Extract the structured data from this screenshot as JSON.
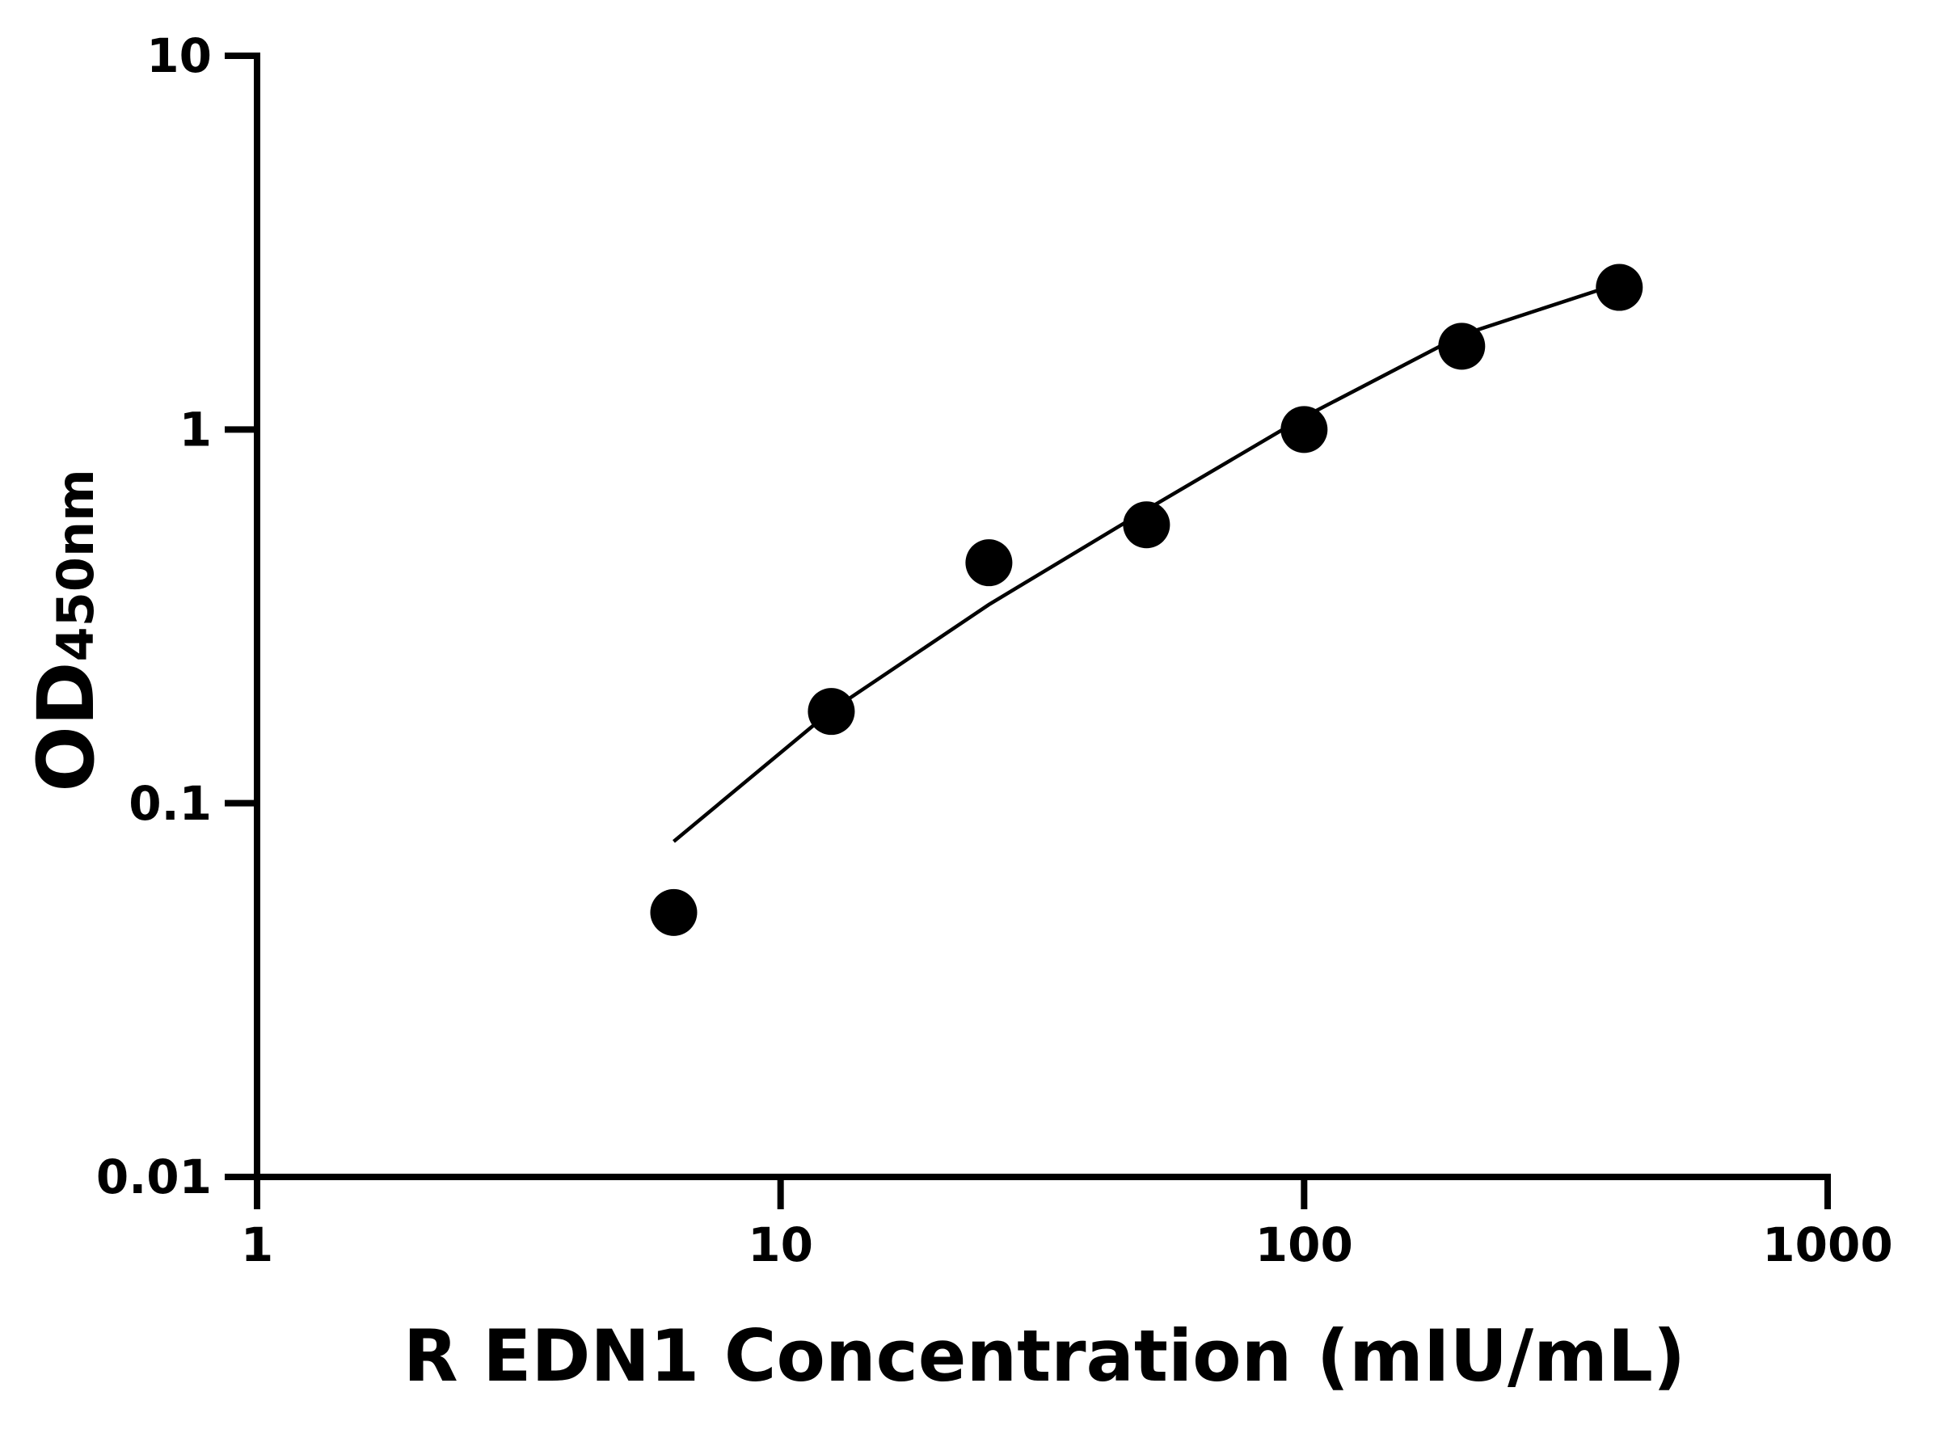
{
  "chart_data": {
    "type": "scatter",
    "xlabel": "R EDN1 Concentration (mIU/mL)",
    "ylabel": "OD",
    "ylabel_subscript": "450nm",
    "x": [
      6.25,
      12.5,
      25,
      50,
      100,
      200,
      400
    ],
    "series": [
      {
        "color": "#000000",
        "values": [
          0.051,
          0.176,
          0.44,
          0.556,
          1.0,
          1.67,
          2.4
        ]
      }
    ],
    "fit": {
      "color": "#000000",
      "x": [
        6.25,
        12.5,
        25,
        50,
        100,
        200,
        400
      ],
      "values": [
        0.079,
        0.177,
        0.34,
        0.61,
        1.08,
        1.79,
        2.46
      ]
    },
    "xlim": [
      1,
      1000
    ],
    "ylim": [
      0.01,
      10
    ],
    "xticks": [
      1,
      10,
      100,
      1000
    ],
    "yticks": [
      0.01,
      0.1,
      1,
      10
    ],
    "xscale": "log",
    "yscale": "log"
  }
}
